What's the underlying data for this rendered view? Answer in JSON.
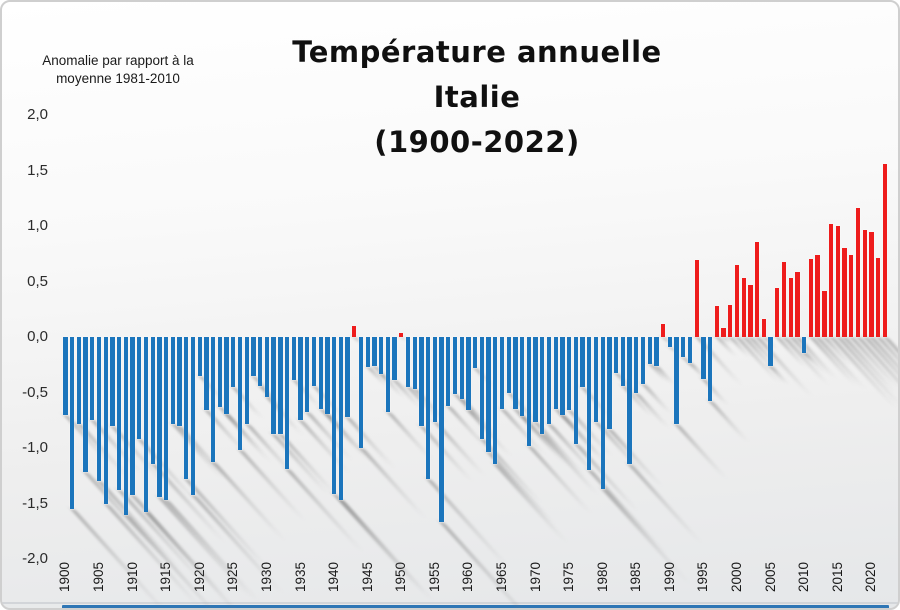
{
  "slide": {
    "axis_label": {
      "line1": "Anomalie par rapport à la",
      "line2": "moyenne 1981-2010"
    },
    "title": {
      "line1": "Température annuelle",
      "line2": "Italie",
      "line3": "(1900-2022)"
    }
  },
  "colors": {
    "bar_positive": "#ee1c1c",
    "bar_negative": "#1b75bc",
    "bottom_strip": "#2e76b5",
    "text": "#1a1a1a"
  },
  "chart_data": {
    "type": "bar",
    "title": "Température annuelle Italie (1900-2022)",
    "ylabel": "Anomalie par rapport à la moyenne 1981-2010",
    "xlabel": "",
    "legend": "none",
    "grid": "off",
    "ylim": [
      -2.0,
      2.0
    ],
    "yticks": [
      {
        "value": 2.0,
        "label": "2,0"
      },
      {
        "value": 1.5,
        "label": "1,5"
      },
      {
        "value": 1.0,
        "label": "1,0"
      },
      {
        "value": 0.5,
        "label": "0,5"
      },
      {
        "value": 0.0,
        "label": "0,0"
      },
      {
        "value": -0.5,
        "label": "-0,5"
      },
      {
        "value": -1.0,
        "label": "-1,0"
      },
      {
        "value": -1.5,
        "label": "-1,5"
      },
      {
        "value": -2.0,
        "label": "-2,0"
      }
    ],
    "xtick_labels": [
      "1900",
      "1905",
      "1910",
      "1915",
      "1920",
      "1925",
      "1930",
      "1935",
      "1940",
      "1945",
      "1950",
      "1955",
      "1960",
      "1965",
      "1970",
      "1975",
      "1980",
      "1985",
      "1990",
      "1995",
      "2000",
      "2005",
      "2010",
      "2015",
      "2020"
    ],
    "start_year": 1900,
    "end_year": 2022,
    "color_rule": "red if value >= 0 else blue",
    "values": [
      -0.7,
      -1.55,
      -0.78,
      -1.22,
      -0.75,
      -1.3,
      -1.5,
      -0.8,
      -1.38,
      -1.6,
      -1.42,
      -0.92,
      -1.58,
      -1.14,
      -1.44,
      -1.47,
      -0.78,
      -0.8,
      -1.28,
      -1.42,
      -0.35,
      -0.66,
      -1.13,
      -0.63,
      -0.69,
      -0.45,
      -1.02,
      -0.78,
      -0.35,
      -0.44,
      -0.54,
      -0.87,
      -0.87,
      -1.19,
      -0.39,
      -0.75,
      -0.68,
      -0.44,
      -0.65,
      -0.69,
      -1.41,
      -1.47,
      -0.72,
      0.1,
      -1.0,
      -0.27,
      -0.26,
      -0.33,
      -0.68,
      -0.39,
      0.04,
      -0.45,
      -0.47,
      -0.8,
      -1.28,
      -0.77,
      -1.67,
      -0.62,
      -0.51,
      -0.56,
      -0.66,
      -0.28,
      -0.92,
      -1.04,
      -1.14,
      -0.65,
      -0.5,
      -0.65,
      -0.71,
      -0.98,
      -0.77,
      -0.87,
      -0.78,
      -0.65,
      -0.7,
      -0.66,
      -0.96,
      -0.45,
      -1.2,
      -0.77,
      -1.37,
      -0.83,
      -0.32,
      -0.44,
      -1.14,
      -0.5,
      -0.42,
      -0.24,
      -0.26,
      0.12,
      -0.09,
      -0.78,
      -0.18,
      -0.23,
      0.69,
      -0.38,
      -0.58,
      0.28,
      0.08,
      0.29,
      0.65,
      0.53,
      0.47,
      0.86,
      0.16,
      -0.26,
      0.44,
      0.68,
      0.53,
      0.59,
      -0.14,
      0.7,
      0.74,
      0.41,
      1.02,
      1.0,
      0.8,
      0.74,
      1.16,
      0.96,
      0.95,
      0.71,
      1.56
    ]
  }
}
